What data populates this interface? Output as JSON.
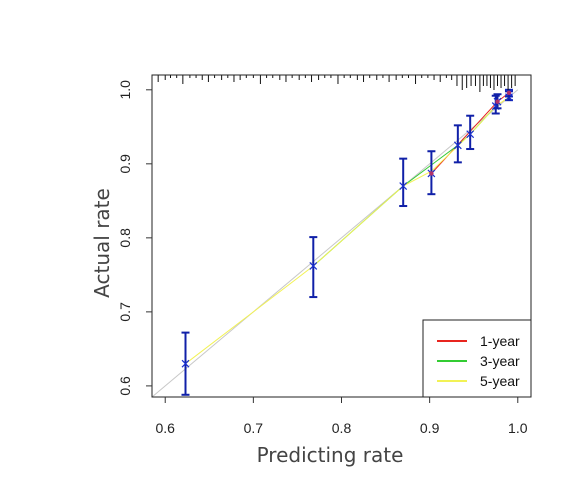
{
  "chart_data": {
    "type": "line",
    "title": "",
    "xlabel": "Predicting rate",
    "ylabel": "Actual rate",
    "xlim": [
      0.585,
      1.015
    ],
    "ylim": [
      0.585,
      1.02
    ],
    "x_ticks": [
      0.6,
      0.7,
      0.8,
      0.9,
      1.0
    ],
    "x_tick_labels": [
      "0.6",
      "0.7",
      "0.8",
      "0.9",
      "1.0"
    ],
    "y_ticks": [
      0.6,
      0.7,
      0.8,
      0.9,
      1.0
    ],
    "y_tick_labels": [
      "0.6",
      "0.7",
      "0.8",
      "0.9",
      "1.0"
    ],
    "grid": false,
    "legend_position": "bottom-right",
    "reference_line": {
      "x": [
        0.585,
        1.0
      ],
      "y": [
        0.585,
        1.0
      ],
      "color": "#c8c8c8"
    },
    "series": [
      {
        "name": "1-year",
        "color": "#e8251f",
        "x": [
          0.902,
          0.977,
          0.99
        ],
        "y": [
          0.887,
          0.984,
          0.996
        ]
      },
      {
        "name": "3-year",
        "color": "#33cc33",
        "x": [
          0.768,
          0.87,
          0.932,
          0.946,
          0.975
        ],
        "y": [
          0.762,
          0.87,
          0.925,
          0.94,
          0.978
        ]
      },
      {
        "name": "5-year",
        "color": "#f2f255",
        "x": [
          0.623,
          0.768,
          0.87,
          0.902,
          0.946,
          0.975,
          0.99
        ],
        "y": [
          0.63,
          0.762,
          0.87,
          0.89,
          0.94,
          0.978,
          0.99
        ]
      }
    ],
    "points": [
      {
        "x": 0.623,
        "y": 0.63,
        "lo": 0.588,
        "hi": 0.672
      },
      {
        "x": 0.768,
        "y": 0.762,
        "lo": 0.72,
        "hi": 0.801
      },
      {
        "x": 0.87,
        "y": 0.87,
        "lo": 0.843,
        "hi": 0.907
      },
      {
        "x": 0.902,
        "y": 0.887,
        "lo": 0.859,
        "hi": 0.917
      },
      {
        "x": 0.932,
        "y": 0.925,
        "lo": 0.902,
        "hi": 0.952
      },
      {
        "x": 0.946,
        "y": 0.94,
        "lo": 0.92,
        "hi": 0.965
      },
      {
        "x": 0.975,
        "y": 0.978,
        "lo": 0.968,
        "hi": 0.992
      },
      {
        "x": 0.977,
        "y": 0.984,
        "lo": 0.975,
        "hi": 0.994
      },
      {
        "x": 0.99,
        "y": 0.99,
        "lo": 0.986,
        "hi": 0.998
      },
      {
        "x": 0.99,
        "y": 0.996,
        "lo": 0.991,
        "hi": 1.0
      }
    ],
    "rug_x": [
      0.592,
      0.6,
      0.606,
      0.613,
      0.62,
      0.628,
      0.635,
      0.642,
      0.649,
      0.656,
      0.664,
      0.671,
      0.678,
      0.685,
      0.692,
      0.7,
      0.708,
      0.715,
      0.722,
      0.73,
      0.737,
      0.744,
      0.752,
      0.759,
      0.766,
      0.774,
      0.781,
      0.788,
      0.796,
      0.803,
      0.81,
      0.818,
      0.825,
      0.832,
      0.84,
      0.847,
      0.854,
      0.862,
      0.869,
      0.876,
      0.884,
      0.891,
      0.898,
      0.905,
      0.912,
      0.919,
      0.925,
      0.931,
      0.937,
      0.942,
      0.947,
      0.952,
      0.957,
      0.961,
      0.965,
      0.969,
      0.973,
      0.977,
      0.981,
      0.985,
      0.989,
      0.993,
      0.997
    ]
  }
}
